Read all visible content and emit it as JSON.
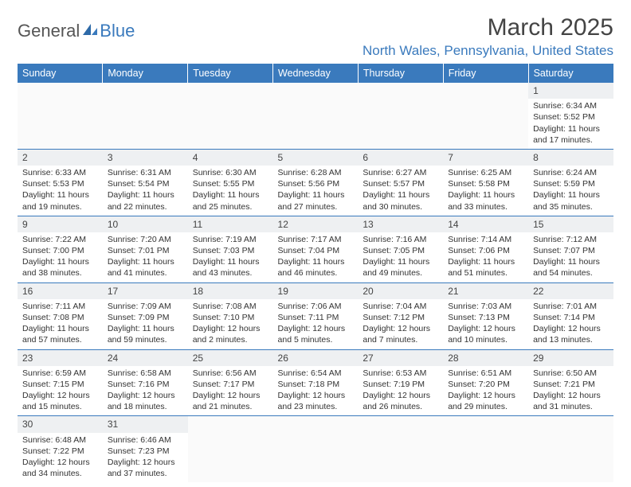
{
  "logo": {
    "part1": "General",
    "part2": "Blue"
  },
  "title": "March 2025",
  "location": "North Wales, Pennsylvania, United States",
  "colors": {
    "accent": "#3a7abd",
    "header_bg": "#3a7abd",
    "header_text": "#ffffff",
    "daynum_bg": "#eef0f2",
    "text": "#333333"
  },
  "day_headers": [
    "Sunday",
    "Monday",
    "Tuesday",
    "Wednesday",
    "Thursday",
    "Friday",
    "Saturday"
  ],
  "weeks": [
    [
      {
        "empty": true
      },
      {
        "empty": true
      },
      {
        "empty": true
      },
      {
        "empty": true
      },
      {
        "empty": true
      },
      {
        "empty": true
      },
      {
        "day": "1",
        "sunrise": "Sunrise: 6:34 AM",
        "sunset": "Sunset: 5:52 PM",
        "daylight1": "Daylight: 11 hours",
        "daylight2": "and 17 minutes."
      }
    ],
    [
      {
        "day": "2",
        "sunrise": "Sunrise: 6:33 AM",
        "sunset": "Sunset: 5:53 PM",
        "daylight1": "Daylight: 11 hours",
        "daylight2": "and 19 minutes."
      },
      {
        "day": "3",
        "sunrise": "Sunrise: 6:31 AM",
        "sunset": "Sunset: 5:54 PM",
        "daylight1": "Daylight: 11 hours",
        "daylight2": "and 22 minutes."
      },
      {
        "day": "4",
        "sunrise": "Sunrise: 6:30 AM",
        "sunset": "Sunset: 5:55 PM",
        "daylight1": "Daylight: 11 hours",
        "daylight2": "and 25 minutes."
      },
      {
        "day": "5",
        "sunrise": "Sunrise: 6:28 AM",
        "sunset": "Sunset: 5:56 PM",
        "daylight1": "Daylight: 11 hours",
        "daylight2": "and 27 minutes."
      },
      {
        "day": "6",
        "sunrise": "Sunrise: 6:27 AM",
        "sunset": "Sunset: 5:57 PM",
        "daylight1": "Daylight: 11 hours",
        "daylight2": "and 30 minutes."
      },
      {
        "day": "7",
        "sunrise": "Sunrise: 6:25 AM",
        "sunset": "Sunset: 5:58 PM",
        "daylight1": "Daylight: 11 hours",
        "daylight2": "and 33 minutes."
      },
      {
        "day": "8",
        "sunrise": "Sunrise: 6:24 AM",
        "sunset": "Sunset: 5:59 PM",
        "daylight1": "Daylight: 11 hours",
        "daylight2": "and 35 minutes."
      }
    ],
    [
      {
        "day": "9",
        "sunrise": "Sunrise: 7:22 AM",
        "sunset": "Sunset: 7:00 PM",
        "daylight1": "Daylight: 11 hours",
        "daylight2": "and 38 minutes."
      },
      {
        "day": "10",
        "sunrise": "Sunrise: 7:20 AM",
        "sunset": "Sunset: 7:01 PM",
        "daylight1": "Daylight: 11 hours",
        "daylight2": "and 41 minutes."
      },
      {
        "day": "11",
        "sunrise": "Sunrise: 7:19 AM",
        "sunset": "Sunset: 7:03 PM",
        "daylight1": "Daylight: 11 hours",
        "daylight2": "and 43 minutes."
      },
      {
        "day": "12",
        "sunrise": "Sunrise: 7:17 AM",
        "sunset": "Sunset: 7:04 PM",
        "daylight1": "Daylight: 11 hours",
        "daylight2": "and 46 minutes."
      },
      {
        "day": "13",
        "sunrise": "Sunrise: 7:16 AM",
        "sunset": "Sunset: 7:05 PM",
        "daylight1": "Daylight: 11 hours",
        "daylight2": "and 49 minutes."
      },
      {
        "day": "14",
        "sunrise": "Sunrise: 7:14 AM",
        "sunset": "Sunset: 7:06 PM",
        "daylight1": "Daylight: 11 hours",
        "daylight2": "and 51 minutes."
      },
      {
        "day": "15",
        "sunrise": "Sunrise: 7:12 AM",
        "sunset": "Sunset: 7:07 PM",
        "daylight1": "Daylight: 11 hours",
        "daylight2": "and 54 minutes."
      }
    ],
    [
      {
        "day": "16",
        "sunrise": "Sunrise: 7:11 AM",
        "sunset": "Sunset: 7:08 PM",
        "daylight1": "Daylight: 11 hours",
        "daylight2": "and 57 minutes."
      },
      {
        "day": "17",
        "sunrise": "Sunrise: 7:09 AM",
        "sunset": "Sunset: 7:09 PM",
        "daylight1": "Daylight: 11 hours",
        "daylight2": "and 59 minutes."
      },
      {
        "day": "18",
        "sunrise": "Sunrise: 7:08 AM",
        "sunset": "Sunset: 7:10 PM",
        "daylight1": "Daylight: 12 hours",
        "daylight2": "and 2 minutes."
      },
      {
        "day": "19",
        "sunrise": "Sunrise: 7:06 AM",
        "sunset": "Sunset: 7:11 PM",
        "daylight1": "Daylight: 12 hours",
        "daylight2": "and 5 minutes."
      },
      {
        "day": "20",
        "sunrise": "Sunrise: 7:04 AM",
        "sunset": "Sunset: 7:12 PM",
        "daylight1": "Daylight: 12 hours",
        "daylight2": "and 7 minutes."
      },
      {
        "day": "21",
        "sunrise": "Sunrise: 7:03 AM",
        "sunset": "Sunset: 7:13 PM",
        "daylight1": "Daylight: 12 hours",
        "daylight2": "and 10 minutes."
      },
      {
        "day": "22",
        "sunrise": "Sunrise: 7:01 AM",
        "sunset": "Sunset: 7:14 PM",
        "daylight1": "Daylight: 12 hours",
        "daylight2": "and 13 minutes."
      }
    ],
    [
      {
        "day": "23",
        "sunrise": "Sunrise: 6:59 AM",
        "sunset": "Sunset: 7:15 PM",
        "daylight1": "Daylight: 12 hours",
        "daylight2": "and 15 minutes."
      },
      {
        "day": "24",
        "sunrise": "Sunrise: 6:58 AM",
        "sunset": "Sunset: 7:16 PM",
        "daylight1": "Daylight: 12 hours",
        "daylight2": "and 18 minutes."
      },
      {
        "day": "25",
        "sunrise": "Sunrise: 6:56 AM",
        "sunset": "Sunset: 7:17 PM",
        "daylight1": "Daylight: 12 hours",
        "daylight2": "and 21 minutes."
      },
      {
        "day": "26",
        "sunrise": "Sunrise: 6:54 AM",
        "sunset": "Sunset: 7:18 PM",
        "daylight1": "Daylight: 12 hours",
        "daylight2": "and 23 minutes."
      },
      {
        "day": "27",
        "sunrise": "Sunrise: 6:53 AM",
        "sunset": "Sunset: 7:19 PM",
        "daylight1": "Daylight: 12 hours",
        "daylight2": "and 26 minutes."
      },
      {
        "day": "28",
        "sunrise": "Sunrise: 6:51 AM",
        "sunset": "Sunset: 7:20 PM",
        "daylight1": "Daylight: 12 hours",
        "daylight2": "and 29 minutes."
      },
      {
        "day": "29",
        "sunrise": "Sunrise: 6:50 AM",
        "sunset": "Sunset: 7:21 PM",
        "daylight1": "Daylight: 12 hours",
        "daylight2": "and 31 minutes."
      }
    ],
    [
      {
        "day": "30",
        "sunrise": "Sunrise: 6:48 AM",
        "sunset": "Sunset: 7:22 PM",
        "daylight1": "Daylight: 12 hours",
        "daylight2": "and 34 minutes."
      },
      {
        "day": "31",
        "sunrise": "Sunrise: 6:46 AM",
        "sunset": "Sunset: 7:23 PM",
        "daylight1": "Daylight: 12 hours",
        "daylight2": "and 37 minutes."
      },
      {
        "empty": true
      },
      {
        "empty": true
      },
      {
        "empty": true
      },
      {
        "empty": true
      },
      {
        "empty": true
      }
    ]
  ]
}
